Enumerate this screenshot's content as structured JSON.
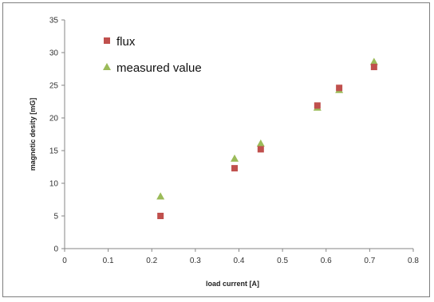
{
  "chart_data": {
    "type": "scatter",
    "title": "",
    "xlabel": "load current  [A]",
    "ylabel": "magnetic desity [mG]",
    "xlim": [
      0,
      0.8
    ],
    "ylim": [
      0,
      35
    ],
    "x_ticks": [
      "0",
      "0.1",
      "0.2",
      "0.3",
      "0.4",
      "0.5",
      "0.6",
      "0.7",
      "0.8"
    ],
    "y_ticks": [
      "0",
      "5",
      "10",
      "15",
      "20",
      "25",
      "30",
      "35"
    ],
    "grid": false,
    "legend_position": "top-left",
    "series": [
      {
        "name": "flux",
        "marker": "square",
        "color": "#c0504d",
        "x": [
          0.22,
          0.39,
          0.45,
          0.58,
          0.63,
          0.71
        ],
        "y": [
          5.0,
          12.3,
          15.2,
          21.9,
          24.6,
          27.8
        ]
      },
      {
        "name": "measured value",
        "marker": "triangle",
        "color": "#9bbb59",
        "x": [
          0.22,
          0.39,
          0.45,
          0.58,
          0.63,
          0.71
        ],
        "y": [
          8.0,
          13.8,
          16.1,
          21.6,
          24.3,
          28.6
        ]
      }
    ]
  }
}
